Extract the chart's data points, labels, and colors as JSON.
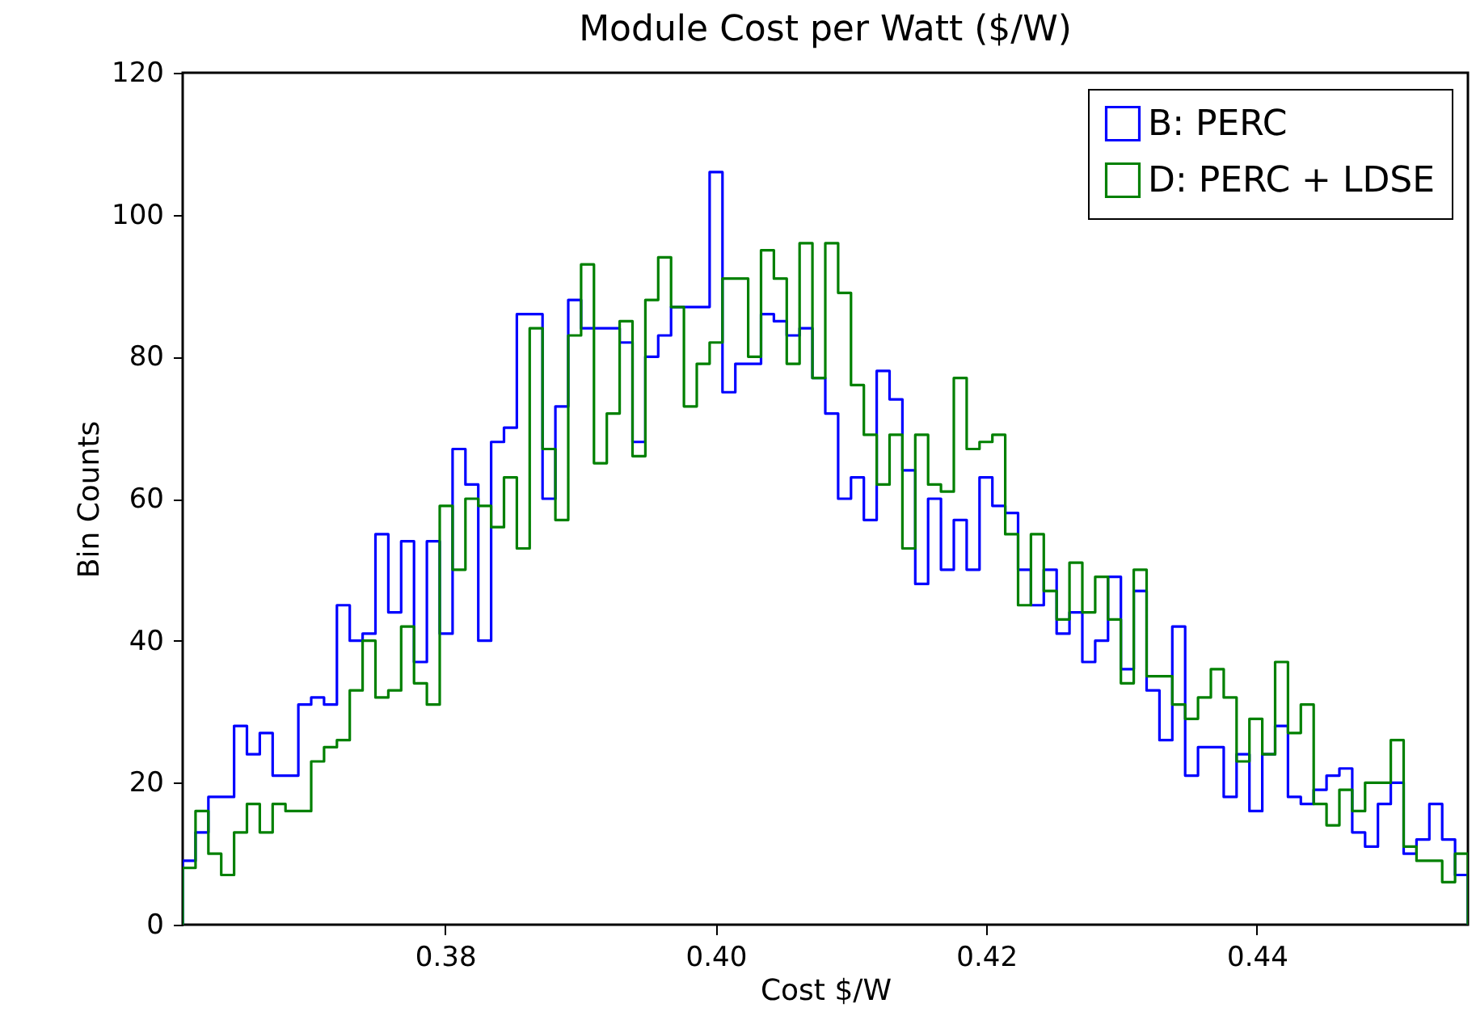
{
  "chart_data": {
    "type": "histogram",
    "title": "Module Cost per Watt ($/W)",
    "xlabel": "Cost $/W",
    "ylabel": "Bin Counts",
    "bins": [
      0.3606,
      0.36155,
      0.3625,
      0.36345,
      0.3644,
      0.36535,
      0.3663,
      0.36725,
      0.3682,
      0.36915,
      0.3701,
      0.37105,
      0.372,
      0.37295,
      0.3739,
      0.37485,
      0.3758,
      0.37675,
      0.3777,
      0.37865,
      0.3796,
      0.38055,
      0.3815,
      0.38245,
      0.3834,
      0.38435,
      0.3853,
      0.38625,
      0.3872,
      0.38815,
      0.3891,
      0.39005,
      0.391,
      0.39195,
      0.3929,
      0.39385,
      0.3948,
      0.39575,
      0.3967,
      0.39765,
      0.3986,
      0.39955,
      0.4005,
      0.40145,
      0.4024,
      0.40335,
      0.4043,
      0.40525,
      0.4062,
      0.40715,
      0.4081,
      0.40905,
      0.41,
      0.41095,
      0.4119,
      0.41285,
      0.4138,
      0.41475,
      0.4157,
      0.41665,
      0.4176,
      0.41855,
      0.4195,
      0.42045,
      0.4214,
      0.42235,
      0.4233,
      0.42425,
      0.4252,
      0.42615,
      0.4271,
      0.42805,
      0.429,
      0.42995,
      0.4309,
      0.43185,
      0.4328,
      0.43375,
      0.4347,
      0.43565,
      0.4366,
      0.43755,
      0.4385,
      0.43945,
      0.4404,
      0.44135,
      0.4423,
      0.44325,
      0.4442,
      0.44515,
      0.4461,
      0.44705,
      0.448,
      0.44895,
      0.4499,
      0.45085,
      0.4518,
      0.45275,
      0.4537,
      0.45465,
      0.4556
    ],
    "series": [
      {
        "name": "B: PERC",
        "color": "#0000ff",
        "values": [
          9,
          13,
          18,
          18,
          28,
          24,
          27,
          21,
          21,
          31,
          32,
          31,
          45,
          40,
          41,
          55,
          44,
          54,
          37,
          54,
          41,
          67,
          62,
          40,
          68,
          70,
          86,
          86,
          60,
          73,
          88,
          84,
          84,
          84,
          82,
          68,
          80,
          83,
          87,
          87,
          87,
          106,
          75,
          79,
          79,
          86,
          85,
          83,
          84,
          77,
          72,
          60,
          63,
          57,
          78,
          74,
          64,
          48,
          60,
          50,
          57,
          50,
          63,
          59,
          58,
          50,
          45,
          50,
          41,
          44,
          37,
          40,
          49,
          36,
          47,
          33,
          26,
          42,
          21,
          25,
          25,
          18,
          24,
          16,
          24,
          28,
          18,
          17,
          19,
          21,
          22,
          13,
          11,
          17,
          20,
          10,
          12,
          17,
          12,
          7
        ]
      },
      {
        "name": "D: PERC + LDSE",
        "color": "#008000",
        "values": [
          8,
          16,
          10,
          7,
          13,
          17,
          13,
          17,
          16,
          16,
          23,
          25,
          26,
          33,
          40,
          32,
          33,
          42,
          34,
          31,
          59,
          50,
          60,
          59,
          56,
          63,
          53,
          84,
          67,
          57,
          83,
          93,
          65,
          72,
          85,
          66,
          88,
          94,
          87,
          73,
          79,
          82,
          91,
          91,
          80,
          95,
          91,
          79,
          96,
          77,
          96,
          89,
          76,
          69,
          62,
          69,
          53,
          69,
          62,
          61,
          77,
          67,
          68,
          69,
          55,
          45,
          55,
          47,
          43,
          51,
          44,
          49,
          43,
          34,
          50,
          35,
          35,
          31,
          29,
          32,
          36,
          32,
          23,
          29,
          24,
          37,
          27,
          31,
          17,
          14,
          19,
          16,
          20,
          20,
          26,
          11,
          9,
          9,
          6,
          10
        ]
      }
    ],
    "xlim": [
      0.3606,
      0.4556
    ],
    "xticks": [
      0.38,
      {
        "value": 0.4,
        "label": "0.40"
      },
      0.42,
      0.44
    ],
    "ylim": [
      0,
      120
    ],
    "yticks": [
      0,
      20,
      40,
      60,
      80,
      100,
      120
    ],
    "grid": false,
    "legend": "top right"
  }
}
